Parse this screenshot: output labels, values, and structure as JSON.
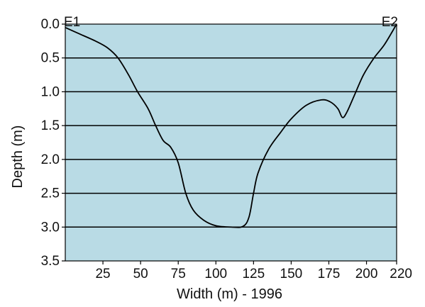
{
  "chart_data": {
    "type": "line",
    "xlabel": "Width (m) - 1996",
    "ylabel": "Depth (m)",
    "xlim": [
      0,
      220
    ],
    "ylim": [
      0,
      3.5
    ],
    "y_inverted": true,
    "x_ticks": [
      "25",
      "50",
      "75",
      "100",
      "125",
      "150",
      "175",
      "200",
      "220"
    ],
    "x_tick_values": [
      25,
      50,
      75,
      100,
      125,
      150,
      175,
      200,
      220
    ],
    "y_ticks": [
      "0.0",
      "0.5",
      "1.0",
      "1.5",
      "2.0",
      "2.5",
      "3.0",
      "3.5"
    ],
    "y_tick_values": [
      0.0,
      0.5,
      1.0,
      1.5,
      2.0,
      2.5,
      3.0,
      3.5
    ],
    "grid": "horizontal",
    "plot_background": "#b9dbe5",
    "line_color": "#000000",
    "annotations": [
      {
        "text": "E1",
        "x": 0,
        "y": 0.0
      },
      {
        "text": "E2",
        "x": 220,
        "y": 0.0
      }
    ],
    "series": [
      {
        "points": [
          [
            0,
            0.05
          ],
          [
            10,
            0.15
          ],
          [
            20,
            0.25
          ],
          [
            28,
            0.35
          ],
          [
            35,
            0.5
          ],
          [
            42,
            0.75
          ],
          [
            48,
            1.0
          ],
          [
            55,
            1.25
          ],
          [
            60,
            1.5
          ],
          [
            65,
            1.72
          ],
          [
            70,
            1.82
          ],
          [
            75,
            2.05
          ],
          [
            80,
            2.5
          ],
          [
            85,
            2.75
          ],
          [
            92,
            2.9
          ],
          [
            100,
            2.98
          ],
          [
            110,
            3.0
          ],
          [
            118,
            2.99
          ],
          [
            122,
            2.85
          ],
          [
            125,
            2.5
          ],
          [
            128,
            2.2
          ],
          [
            135,
            1.85
          ],
          [
            143,
            1.6
          ],
          [
            150,
            1.4
          ],
          [
            160,
            1.2
          ],
          [
            170,
            1.12
          ],
          [
            176,
            1.15
          ],
          [
            181,
            1.25
          ],
          [
            184,
            1.38
          ],
          [
            187,
            1.3
          ],
          [
            192,
            1.05
          ],
          [
            198,
            0.75
          ],
          [
            205,
            0.5
          ],
          [
            212,
            0.3
          ],
          [
            220,
            0.0
          ]
        ]
      }
    ]
  }
}
